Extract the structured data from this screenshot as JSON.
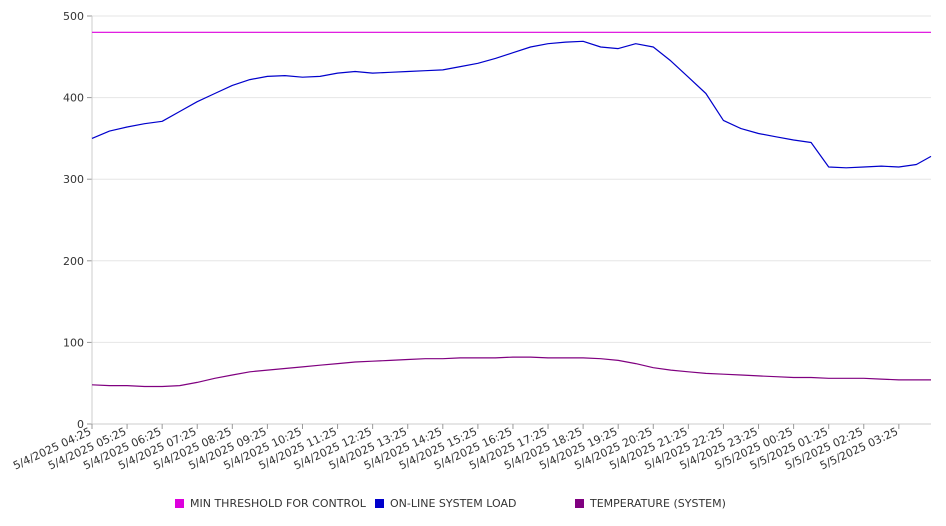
{
  "chart_data": {
    "type": "line",
    "title": "",
    "xlabel": "",
    "ylabel": "",
    "ylim": [
      0,
      500
    ],
    "yticks": [
      0,
      100,
      200,
      300,
      400,
      500
    ],
    "grid": "horizontal",
    "legend_position": "bottom",
    "x_tick_labels": [
      "5/4/2025 04:25",
      "5/4/2025 05:25",
      "5/4/2025 06:25",
      "5/4/2025 07:25",
      "5/4/2025 08:25",
      "5/4/2025 09:25",
      "5/4/2025 10:25",
      "5/4/2025 11:25",
      "5/4/2025 12:25",
      "5/4/2025 13:25",
      "5/4/2025 14:25",
      "5/4/2025 15:25",
      "5/4/2025 16:25",
      "5/4/2025 17:25",
      "5/4/2025 18:25",
      "5/4/2025 19:25",
      "5/4/2025 20:25",
      "5/4/2025 21:25",
      "5/4/2025 22:25",
      "5/4/2025 23:25",
      "5/5/2025 00:25",
      "5/5/2025 01:25",
      "5/5/2025 02:25",
      "5/5/2025 03:25"
    ],
    "x": [
      "5/4/2025 04:25",
      "5/4/2025 04:55",
      "5/4/2025 05:25",
      "5/4/2025 05:55",
      "5/4/2025 06:25",
      "5/4/2025 06:55",
      "5/4/2025 07:25",
      "5/4/2025 07:55",
      "5/4/2025 08:25",
      "5/4/2025 08:55",
      "5/4/2025 09:25",
      "5/4/2025 09:55",
      "5/4/2025 10:25",
      "5/4/2025 10:55",
      "5/4/2025 11:25",
      "5/4/2025 11:55",
      "5/4/2025 12:25",
      "5/4/2025 12:55",
      "5/4/2025 13:25",
      "5/4/2025 13:55",
      "5/4/2025 14:25",
      "5/4/2025 14:55",
      "5/4/2025 15:25",
      "5/4/2025 15:55",
      "5/4/2025 16:25",
      "5/4/2025 16:55",
      "5/4/2025 17:25",
      "5/4/2025 17:55",
      "5/4/2025 18:25",
      "5/4/2025 18:55",
      "5/4/2025 19:25",
      "5/4/2025 19:55",
      "5/4/2025 20:25",
      "5/4/2025 20:55",
      "5/4/2025 21:25",
      "5/4/2025 21:55",
      "5/4/2025 22:25",
      "5/4/2025 22:55",
      "5/4/2025 23:25",
      "5/4/2025 23:55",
      "5/5/2025 00:25",
      "5/5/2025 00:55",
      "5/5/2025 01:25",
      "5/5/2025 01:55",
      "5/5/2025 02:25",
      "5/5/2025 02:55",
      "5/5/2025 03:25",
      "5/5/2025 03:55",
      "5/5/2025 04:20"
    ],
    "series": [
      {
        "name": "MIN THRESHOLD FOR CONTROL",
        "color": "#dd00dd",
        "values": [
          480,
          480,
          480,
          480,
          480,
          480,
          480,
          480,
          480,
          480,
          480,
          480,
          480,
          480,
          480,
          480,
          480,
          480,
          480,
          480,
          480,
          480,
          480,
          480,
          480,
          480,
          480,
          480,
          480,
          480,
          480,
          480,
          480,
          480,
          480,
          480,
          480,
          480,
          480,
          480,
          480,
          480,
          480,
          480,
          480,
          480,
          480,
          480,
          480
        ]
      },
      {
        "name": "ON-LINE SYSTEM LOAD",
        "color": "#0000cc",
        "values": [
          350,
          359,
          364,
          368,
          371,
          383,
          395,
          405,
          415,
          422,
          426,
          427,
          425,
          426,
          430,
          432,
          430,
          431,
          432,
          433,
          434,
          438,
          442,
          448,
          455,
          462,
          466,
          468,
          469,
          462,
          460,
          466,
          462,
          445,
          425,
          405,
          372,
          362,
          356,
          352,
          348,
          345,
          315,
          314,
          315,
          316,
          315,
          318,
          328
        ]
      },
      {
        "name": "TEMPERATURE (SYSTEM)",
        "color": "#800080",
        "values": [
          48,
          47,
          47,
          46,
          46,
          47,
          51,
          56,
          60,
          64,
          66,
          68,
          70,
          72,
          74,
          76,
          77,
          78,
          79,
          80,
          80,
          81,
          81,
          81,
          82,
          82,
          81,
          81,
          81,
          80,
          78,
          74,
          69,
          66,
          64,
          62,
          61,
          60,
          59,
          58,
          57,
          57,
          56,
          56,
          56,
          55,
          54,
          54,
          54
        ]
      }
    ]
  }
}
